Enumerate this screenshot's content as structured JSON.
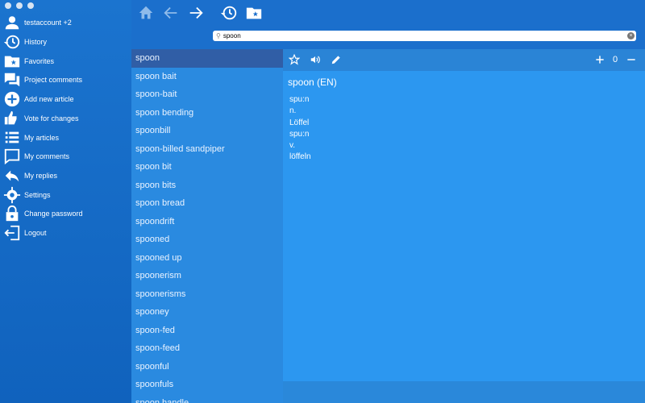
{
  "sidebar": {
    "account": "testaccount  +2",
    "items": [
      {
        "label": "History",
        "icon": "history-icon"
      },
      {
        "label": "Favorites",
        "icon": "favorites-folder-icon"
      },
      {
        "label": "Project comments",
        "icon": "comments-icon"
      },
      {
        "label": "Add new article",
        "icon": "add-icon"
      },
      {
        "label": "Vote for changes",
        "icon": "thumbs-icon"
      },
      {
        "label": "My articles",
        "icon": "list-icon"
      },
      {
        "label": "My comments",
        "icon": "comment-icon"
      },
      {
        "label": "My replies",
        "icon": "reply-icon"
      },
      {
        "label": "Settings",
        "icon": "gear-icon"
      },
      {
        "label": "Change password",
        "icon": "lock-icon"
      },
      {
        "label": "Logout",
        "icon": "logout-icon"
      }
    ]
  },
  "search": {
    "value": "spoon"
  },
  "results": [
    "spoon",
    "spoon bait",
    "spoon-bait",
    "spoon bending",
    "spoonbill",
    "spoon-billed sandpiper",
    "spoon bit",
    "spoon bits",
    "spoon bread",
    "spoondrift",
    "spooned",
    "spooned up",
    "spoonerism",
    "spoonerisms",
    "spooney",
    "spoon-fed",
    "spoon-feed",
    "spoonful",
    "spoonfuls",
    "spoon handle"
  ],
  "detail": {
    "title": "spoon (EN)",
    "rating": "0",
    "lines": [
      "spu:n",
      "n.",
      "Löffel",
      "spu:n",
      "v.",
      "löffeln"
    ]
  },
  "colors": {
    "sidebar": "#1b74cf",
    "list": "#2a8ae0",
    "selected": "#305ea6",
    "detail": "#2c97f0"
  }
}
